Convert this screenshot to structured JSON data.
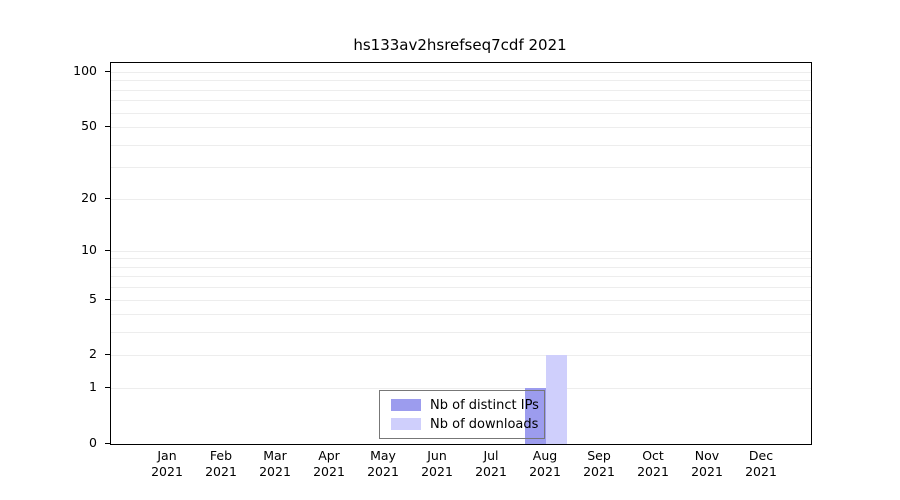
{
  "chart_data": {
    "type": "bar",
    "title": "hs133av2hsrefseq7cdf 2021",
    "xlabel": "",
    "ylabel": "",
    "categories": [
      "Jan 2021",
      "Feb 2021",
      "Mar 2021",
      "Apr 2021",
      "May 2021",
      "Jun 2021",
      "Jul 2021",
      "Aug 2021",
      "Sep 2021",
      "Oct 2021",
      "Nov 2021",
      "Dec 2021"
    ],
    "series": [
      {
        "name": "Nb of distinct IPs",
        "color": "#9c9cee",
        "values": [
          0,
          0,
          0,
          0,
          0,
          0,
          0,
          1,
          0,
          0,
          0,
          0
        ]
      },
      {
        "name": "Nb of downloads",
        "color": "#cfcffc",
        "values": [
          0,
          0,
          0,
          0,
          0,
          0,
          0,
          2,
          0,
          0,
          0,
          0
        ]
      }
    ],
    "yticks": [
      0,
      1,
      2,
      5,
      10,
      20,
      50,
      100
    ],
    "gridline_values": [
      1,
      2,
      3,
      4,
      5,
      6,
      7,
      8,
      9,
      10,
      20,
      30,
      40,
      50,
      60,
      70,
      80,
      90,
      100
    ],
    "ylim": [
      0,
      100
    ],
    "yscale": "log1p",
    "grid": "horizontal",
    "legend_position": "bottom-center"
  }
}
